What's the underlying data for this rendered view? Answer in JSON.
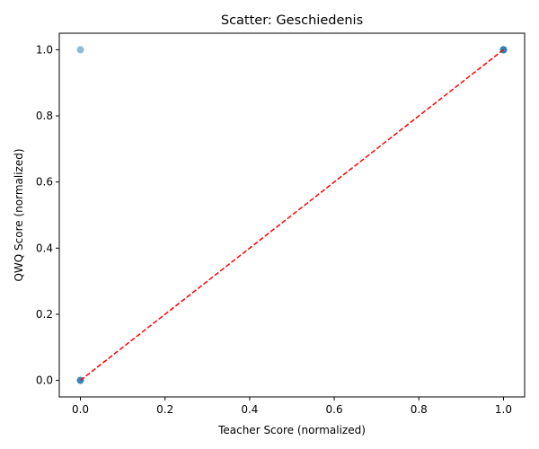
{
  "chart_data": {
    "type": "scatter",
    "title": "Scatter: Geschiedenis",
    "xlabel": "Teacher Score (normalized)",
    "ylabel": "QWQ Score (normalized)",
    "xlim": [
      -0.05,
      1.05
    ],
    "ylim": [
      -0.05,
      1.05
    ],
    "xticks": [
      0.0,
      0.2,
      0.4,
      0.6,
      0.8,
      1.0
    ],
    "yticks": [
      0.0,
      0.2,
      0.4,
      0.6,
      0.8,
      1.0
    ],
    "xtick_labels": [
      "0.0",
      "0.2",
      "0.4",
      "0.6",
      "0.8",
      "1.0"
    ],
    "ytick_labels": [
      "0.0",
      "0.2",
      "0.4",
      "0.6",
      "0.8",
      "1.0"
    ],
    "grid": false,
    "series": [
      {
        "points": [
          {
            "x": 0.0,
            "y": 0.0
          },
          {
            "x": 0.0,
            "y": 0.0
          },
          {
            "x": 0.0,
            "y": 0.0
          },
          {
            "x": 0.0,
            "y": 1.0
          },
          {
            "x": 1.0,
            "y": 1.0
          },
          {
            "x": 1.0,
            "y": 1.0
          },
          {
            "x": 1.0,
            "y": 1.0
          },
          {
            "x": 1.0,
            "y": 1.0
          }
        ],
        "color": "#1f77b4",
        "alpha": 0.5
      }
    ],
    "reference_line": {
      "x": [
        0.0,
        1.0
      ],
      "y": [
        0.0,
        1.0
      ],
      "style": "dashed",
      "color": "#ff0000"
    }
  }
}
